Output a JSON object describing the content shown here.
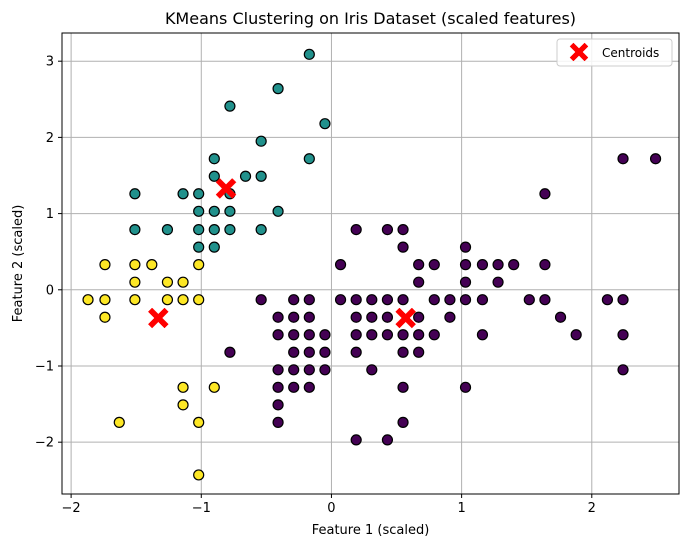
{
  "chart_data": {
    "type": "scatter",
    "title": "KMeans Clustering on Iris Dataset (scaled features)",
    "xlabel": "Feature 1 (scaled)",
    "ylabel": "Feature 2 (scaled)",
    "xlim": [
      -2.07,
      2.67
    ],
    "ylim": [
      -2.68,
      3.37
    ],
    "xticks": [
      -2,
      -1,
      0,
      1,
      2
    ],
    "yticks": [
      -2,
      -1,
      0,
      1,
      2,
      3
    ],
    "xtick_labels": [
      "−2",
      "−1",
      "0",
      "1",
      "2"
    ],
    "ytick_labels": [
      "−2",
      "−1",
      "0",
      "1",
      "2",
      "3"
    ],
    "grid": true,
    "legend": {
      "placement": "top-right",
      "entries": [
        "Centroids"
      ]
    },
    "colors": {
      "cluster_0": "#440154",
      "cluster_1": "#21918c",
      "cluster_2": "#fde725",
      "centroid": "#ff0000",
      "marker_edge": "#000000",
      "grid": "#b0b0b0"
    },
    "series": [
      {
        "cluster": 0,
        "color": "#440154",
        "points": [
          [
            -0.78,
            -0.82
          ],
          [
            -0.54,
            -0.13
          ],
          [
            -0.29,
            -0.13
          ],
          [
            -0.29,
            -0.36
          ],
          [
            -0.29,
            -0.59
          ],
          [
            -0.29,
            -0.82
          ],
          [
            -0.29,
            -1.05
          ],
          [
            -0.29,
            -1.28
          ],
          [
            -0.41,
            -0.36
          ],
          [
            -0.41,
            -0.59
          ],
          [
            -0.41,
            -1.05
          ],
          [
            -0.41,
            -1.28
          ],
          [
            -0.41,
            -1.51
          ],
          [
            -0.41,
            -1.74
          ],
          [
            -0.17,
            -0.13
          ],
          [
            -0.17,
            -0.36
          ],
          [
            -0.17,
            -0.59
          ],
          [
            -0.17,
            -0.82
          ],
          [
            -0.17,
            -1.05
          ],
          [
            -0.17,
            -1.28
          ],
          [
            -0.05,
            -0.59
          ],
          [
            -0.05,
            -0.82
          ],
          [
            -0.05,
            -1.05
          ],
          [
            0.07,
            0.33
          ],
          [
            0.07,
            -0.13
          ],
          [
            0.19,
            0.79
          ],
          [
            0.19,
            -0.13
          ],
          [
            0.19,
            -0.36
          ],
          [
            0.19,
            -0.59
          ],
          [
            0.19,
            -0.82
          ],
          [
            0.19,
            -1.97
          ],
          [
            0.31,
            -0.13
          ],
          [
            0.31,
            -0.36
          ],
          [
            0.31,
            -0.59
          ],
          [
            0.31,
            -1.05
          ],
          [
            0.43,
            0.79
          ],
          [
            0.43,
            -0.13
          ],
          [
            0.43,
            -0.36
          ],
          [
            0.43,
            -0.59
          ],
          [
            0.43,
            -1.97
          ],
          [
            0.55,
            0.79
          ],
          [
            0.55,
            0.56
          ],
          [
            0.55,
            -0.13
          ],
          [
            0.55,
            -0.59
          ],
          [
            0.55,
            -0.82
          ],
          [
            0.55,
            -1.28
          ],
          [
            0.55,
            -1.74
          ],
          [
            0.67,
            0.33
          ],
          [
            0.67,
            0.1
          ],
          [
            0.67,
            -0.36
          ],
          [
            0.67,
            -0.59
          ],
          [
            0.67,
            -0.82
          ],
          [
            0.79,
            0.33
          ],
          [
            0.79,
            -0.13
          ],
          [
            0.79,
            -0.59
          ],
          [
            0.91,
            -0.13
          ],
          [
            0.91,
            -0.36
          ],
          [
            1.03,
            0.56
          ],
          [
            1.03,
            0.33
          ],
          [
            1.03,
            0.1
          ],
          [
            1.03,
            -0.13
          ],
          [
            1.03,
            -1.28
          ],
          [
            1.16,
            0.33
          ],
          [
            1.16,
            -0.13
          ],
          [
            1.16,
            -0.59
          ],
          [
            1.28,
            0.33
          ],
          [
            1.28,
            0.1
          ],
          [
            1.4,
            0.33
          ],
          [
            1.52,
            -0.13
          ],
          [
            1.64,
            1.26
          ],
          [
            1.64,
            0.33
          ],
          [
            1.64,
            -0.13
          ],
          [
            1.76,
            -0.36
          ],
          [
            1.88,
            -0.59
          ],
          [
            2.12,
            -0.13
          ],
          [
            2.24,
            1.72
          ],
          [
            2.24,
            -0.13
          ],
          [
            2.24,
            -0.59
          ],
          [
            2.24,
            -1.05
          ],
          [
            2.49,
            1.72
          ]
        ]
      },
      {
        "cluster": 1,
        "color": "#21918c",
        "points": [
          [
            -0.17,
            3.09
          ],
          [
            -0.41,
            2.64
          ],
          [
            -0.05,
            2.18
          ],
          [
            -0.78,
            2.41
          ],
          [
            -0.9,
            1.72
          ],
          [
            -0.17,
            1.72
          ],
          [
            -0.54,
            1.95
          ],
          [
            -0.54,
            1.49
          ],
          [
            -0.66,
            1.49
          ],
          [
            -0.9,
            1.49
          ],
          [
            -1.51,
            1.26
          ],
          [
            -1.14,
            1.26
          ],
          [
            -1.02,
            1.26
          ],
          [
            -0.78,
            1.26
          ],
          [
            -1.02,
            1.03
          ],
          [
            -0.9,
            1.03
          ],
          [
            -0.78,
            1.03
          ],
          [
            -0.41,
            1.03
          ],
          [
            -1.51,
            0.79
          ],
          [
            -1.26,
            0.79
          ],
          [
            -1.02,
            0.79
          ],
          [
            -0.9,
            0.79
          ],
          [
            -0.78,
            0.79
          ],
          [
            -0.54,
            0.79
          ],
          [
            -1.02,
            0.56
          ],
          [
            -0.9,
            0.56
          ]
        ]
      },
      {
        "cluster": 2,
        "color": "#fde725",
        "points": [
          [
            -1.74,
            0.33
          ],
          [
            -1.51,
            0.33
          ],
          [
            -1.38,
            0.33
          ],
          [
            -1.02,
            0.33
          ],
          [
            -1.51,
            0.1
          ],
          [
            -1.26,
            0.1
          ],
          [
            -1.14,
            0.1
          ],
          [
            -1.87,
            -0.13
          ],
          [
            -1.74,
            -0.13
          ],
          [
            -1.51,
            -0.13
          ],
          [
            -1.26,
            -0.13
          ],
          [
            -1.14,
            -0.13
          ],
          [
            -1.02,
            -0.13
          ],
          [
            -1.74,
            -0.36
          ],
          [
            -1.14,
            -1.28
          ],
          [
            -0.9,
            -1.28
          ],
          [
            -1.14,
            -1.51
          ],
          [
            -1.63,
            -1.74
          ],
          [
            -1.02,
            -1.74
          ],
          [
            -1.02,
            -2.43
          ]
        ]
      }
    ],
    "centroids": [
      [
        -0.81,
        1.33
      ],
      [
        -1.33,
        -0.37
      ],
      [
        0.57,
        -0.37
      ]
    ]
  }
}
